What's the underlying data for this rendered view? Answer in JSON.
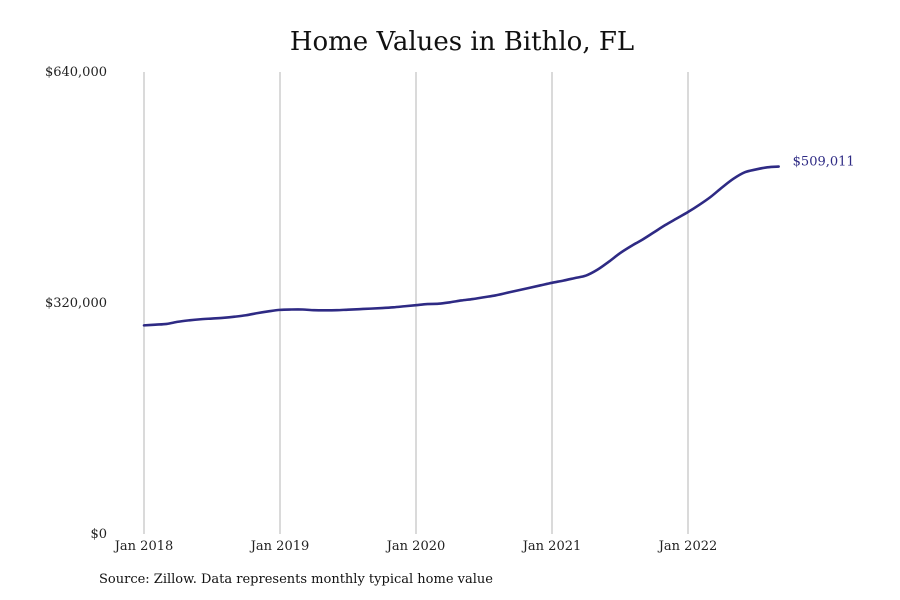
{
  "chart_data": {
    "type": "line",
    "title": "Home Values in Bithlo, FL",
    "xlabel": "",
    "ylabel": "",
    "ylim": [
      0,
      640000
    ],
    "y_ticks": [
      {
        "value": 0,
        "label": "$0"
      },
      {
        "value": 320000,
        "label": "$320,000"
      },
      {
        "value": 640000,
        "label": "$640,000"
      }
    ],
    "x_ticks": [
      {
        "value": 0,
        "label": "Jan 2018"
      },
      {
        "value": 12,
        "label": "Jan 2019"
      },
      {
        "value": 24,
        "label": "Jan 2020"
      },
      {
        "value": 36,
        "label": "Jan 2021"
      },
      {
        "value": 48,
        "label": "Jan 2022"
      }
    ],
    "grid": "vertical",
    "line_color": "#2e2a84",
    "series": [
      {
        "months_from_jan_2018": [
          0,
          1,
          2,
          3,
          4,
          5,
          6,
          7,
          8,
          9,
          10,
          11,
          12,
          13,
          14,
          15,
          16,
          17,
          18,
          19,
          20,
          21,
          22,
          23,
          24,
          25,
          26,
          27,
          28,
          29,
          30,
          31,
          32,
          33,
          34,
          35,
          36,
          37,
          38,
          39,
          40,
          41,
          42,
          43,
          44,
          45,
          46,
          47,
          48,
          49,
          50,
          51,
          52,
          53,
          54,
          55,
          56
        ],
        "values": [
          289000,
          290000,
          291000,
          294000,
          296000,
          297500,
          298500,
          299500,
          301000,
          303000,
          306000,
          308500,
          310500,
          311000,
          311000,
          310000,
          309800,
          310000,
          310800,
          311500,
          312200,
          313000,
          314000,
          315500,
          317000,
          318500,
          319000,
          321000,
          323500,
          325500,
          328000,
          330500,
          334000,
          337500,
          341000,
          344500,
          348000,
          351000,
          354500,
          358000,
          366000,
          377000,
          389000,
          399000,
          408000,
          418000,
          428000,
          437000,
          446000,
          456000,
          467000,
          480000,
          492000,
          501000,
          505000,
          508000,
          509011
        ]
      }
    ],
    "end_label": "$509,011"
  },
  "source_note": "Source: Zillow. Data represents monthly typical home value"
}
